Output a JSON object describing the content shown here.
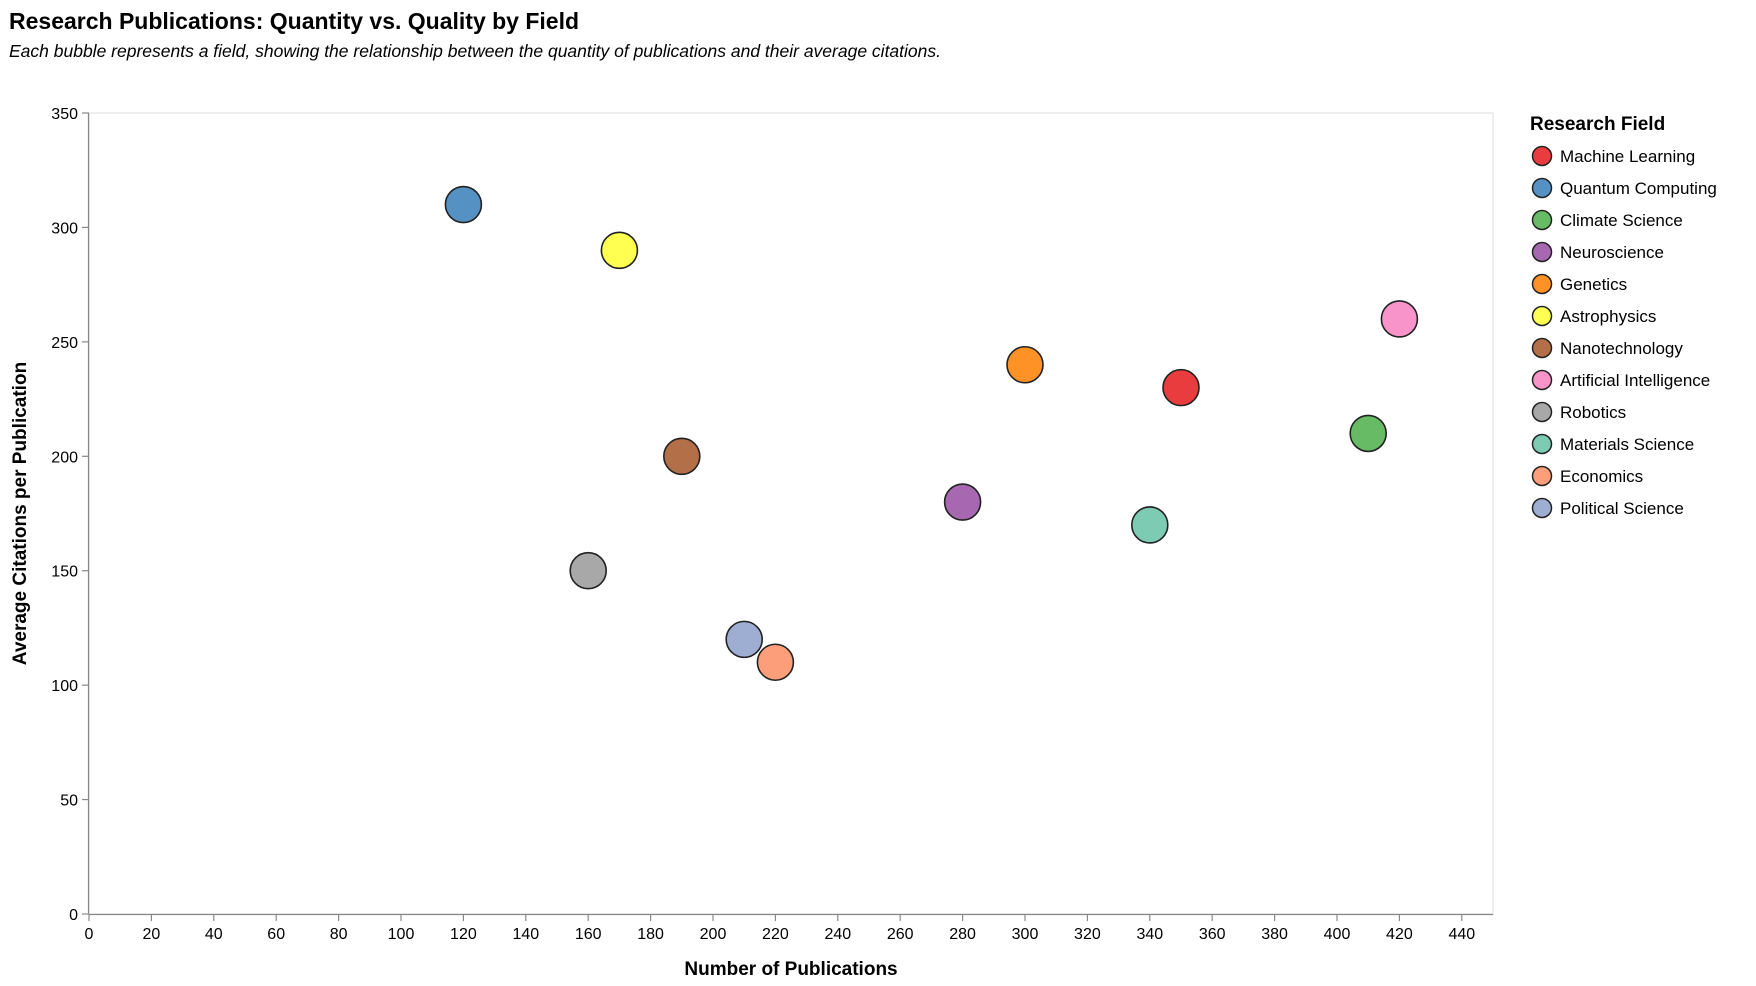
{
  "chart_data": {
    "type": "scatter",
    "title": "Research Publications: Quantity vs. Quality by Field",
    "subtitle": "Each bubble represents a field, showing the relationship between the quantity of publications and their average citations.",
    "xlabel": "Number of Publications",
    "ylabel": "Average Citations per Publication",
    "xlim": [
      0,
      450
    ],
    "ylim": [
      0,
      350
    ],
    "x_ticks": [
      0,
      20,
      40,
      60,
      80,
      100,
      120,
      140,
      160,
      180,
      200,
      220,
      240,
      260,
      280,
      300,
      320,
      340,
      360,
      380,
      400,
      420,
      440
    ],
    "y_ticks": [
      0,
      50,
      100,
      150,
      200,
      250,
      300,
      350
    ],
    "grid": false,
    "legend": {
      "title": "Research Field",
      "placement": "right"
    },
    "series": [
      {
        "name": "Machine Learning",
        "x": 350,
        "y": 230,
        "color": "#e41a1c"
      },
      {
        "name": "Quantum Computing",
        "x": 120,
        "y": 310,
        "color": "#377eb8"
      },
      {
        "name": "Climate Science",
        "x": 410,
        "y": 210,
        "color": "#4daf4a"
      },
      {
        "name": "Neuroscience",
        "x": 280,
        "y": 180,
        "color": "#984ea3"
      },
      {
        "name": "Genetics",
        "x": 300,
        "y": 240,
        "color": "#ff7f00"
      },
      {
        "name": "Astrophysics",
        "x": 170,
        "y": 290,
        "color": "#ffff33"
      },
      {
        "name": "Nanotechnology",
        "x": 190,
        "y": 200,
        "color": "#a65628"
      },
      {
        "name": "Artificial Intelligence",
        "x": 420,
        "y": 260,
        "color": "#f781bf"
      },
      {
        "name": "Robotics",
        "x": 160,
        "y": 150,
        "color": "#999999"
      },
      {
        "name": "Materials Science",
        "x": 340,
        "y": 170,
        "color": "#66c2a5"
      },
      {
        "name": "Economics",
        "x": 220,
        "y": 110,
        "color": "#fc8d62"
      },
      {
        "name": "Political Science",
        "x": 210,
        "y": 120,
        "color": "#8da0cb"
      }
    ]
  }
}
